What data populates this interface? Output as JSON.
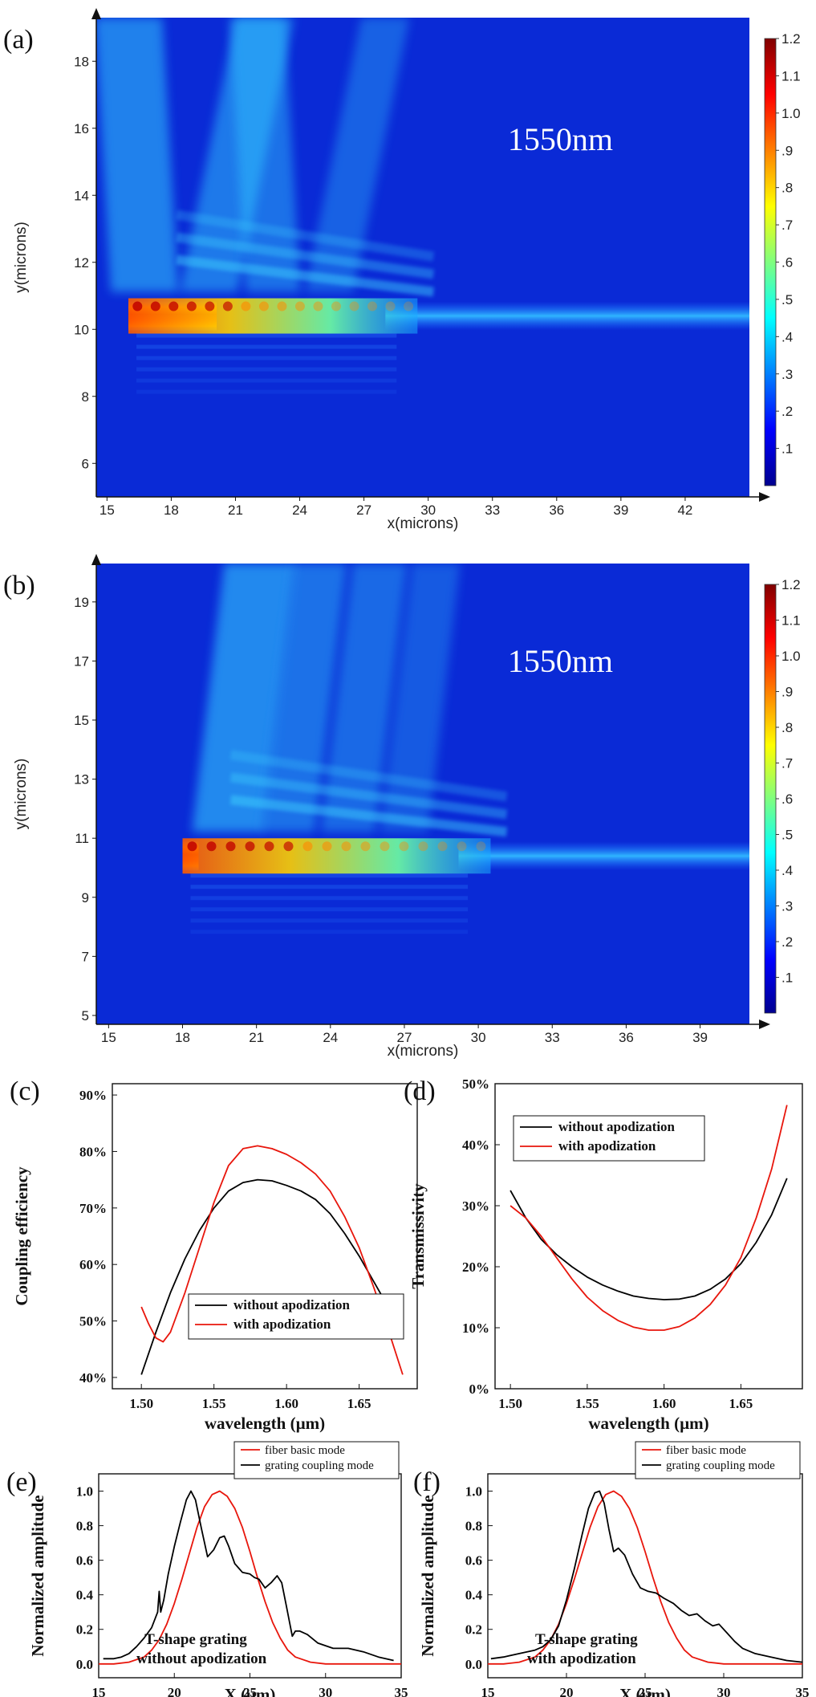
{
  "chart_data": [
    {
      "id": "a",
      "panel_label": "(a)",
      "type": "heatmap",
      "xlabel": "x(microns)",
      "ylabel": "y(microns)",
      "xlim": [
        14.5,
        45
      ],
      "ylim": [
        5,
        19.3
      ],
      "xticks": [
        15,
        18,
        21,
        24,
        27,
        30,
        33,
        36,
        39,
        42
      ],
      "yticks": [
        6,
        8,
        10,
        12,
        14,
        16,
        18
      ],
      "annotation": "1550nm",
      "colorbar_ticks": [
        0.1,
        0.2,
        0.3,
        0.4,
        0.5,
        0.6,
        0.7,
        0.8,
        0.9,
        1.0,
        1.1,
        1.2
      ],
      "waveguide": {
        "x_start": 16,
        "y_center": 10.4,
        "grating_x": [
          16,
          29.5
        ]
      }
    },
    {
      "id": "b",
      "panel_label": "(b)",
      "type": "heatmap",
      "xlabel": "x(microns)",
      "ylabel": "y(microns)",
      "xlim": [
        14.5,
        41
      ],
      "ylim": [
        4.7,
        20.3
      ],
      "xticks": [
        15,
        18,
        21,
        24,
        27,
        30,
        33,
        36,
        39
      ],
      "yticks": [
        5,
        7,
        9,
        11,
        13,
        15,
        17,
        19
      ],
      "annotation": "1550nm",
      "colorbar_ticks": [
        0.1,
        0.2,
        0.3,
        0.4,
        0.5,
        0.6,
        0.7,
        0.8,
        0.9,
        1.0,
        1.1,
        1.2
      ],
      "waveguide": {
        "x_start": 18,
        "y_center": 10.4,
        "grating_x": [
          18,
          30.5
        ]
      }
    },
    {
      "id": "c",
      "panel_label": "(c)",
      "type": "line",
      "xlabel": "wavelength (µm)",
      "ylabel": "Coupling efficiency",
      "xlim": [
        1.48,
        1.69
      ],
      "ylim": [
        38,
        92
      ],
      "xticks": [
        1.5,
        1.55,
        1.6,
        1.65
      ],
      "xtick_labels": [
        "1.50",
        "1.55",
        "1.60",
        "1.65"
      ],
      "yticks": [
        40,
        50,
        60,
        70,
        80,
        90
      ],
      "ytick_labels": [
        "40%",
        "50%",
        "60%",
        "70%",
        "80%",
        "90%"
      ],
      "legend_position": "lower-center",
      "series": [
        {
          "name": "without apodization",
          "color": "#000000",
          "x": [
            1.5,
            1.51,
            1.52,
            1.53,
            1.54,
            1.55,
            1.56,
            1.57,
            1.58,
            1.59,
            1.6,
            1.61,
            1.62,
            1.63,
            1.64,
            1.65,
            1.66,
            1.67,
            1.68
          ],
          "y": [
            40.5,
            48.0,
            55.0,
            61.0,
            66.0,
            70.0,
            73.0,
            74.5,
            75.0,
            74.8,
            74.0,
            73.0,
            71.5,
            69.0,
            65.5,
            61.5,
            57.0,
            52.5,
            47.5
          ]
        },
        {
          "name": "with apodization",
          "color": "#e8160c",
          "x": [
            1.5,
            1.505,
            1.51,
            1.515,
            1.52,
            1.53,
            1.54,
            1.55,
            1.56,
            1.57,
            1.58,
            1.59,
            1.6,
            1.61,
            1.62,
            1.63,
            1.64,
            1.65,
            1.66,
            1.67,
            1.68
          ],
          "y": [
            52.5,
            49.5,
            47.0,
            46.3,
            48.0,
            55.0,
            63.0,
            71.0,
            77.5,
            80.5,
            81.0,
            80.5,
            79.5,
            78.0,
            76.0,
            73.0,
            68.5,
            63.0,
            56.0,
            48.5,
            40.5
          ]
        }
      ]
    },
    {
      "id": "d",
      "panel_label": "(d)",
      "type": "line",
      "xlabel": "wavelength (µm)",
      "ylabel": "Transmissivity",
      "xlim": [
        1.49,
        1.69
      ],
      "ylim": [
        0,
        50
      ],
      "xticks": [
        1.5,
        1.55,
        1.6,
        1.65
      ],
      "xtick_labels": [
        "1.50",
        "1.55",
        "1.60",
        "1.65"
      ],
      "yticks": [
        0,
        10,
        20,
        30,
        40,
        50
      ],
      "ytick_labels": [
        "0%",
        "10%",
        "20%",
        "30%",
        "40%",
        "50%"
      ],
      "legend_position": "top-left",
      "series": [
        {
          "name": "without apodization",
          "color": "#000000",
          "x": [
            1.5,
            1.51,
            1.52,
            1.53,
            1.54,
            1.55,
            1.56,
            1.57,
            1.58,
            1.59,
            1.6,
            1.61,
            1.62,
            1.63,
            1.64,
            1.65,
            1.66,
            1.67,
            1.68
          ],
          "y": [
            32.5,
            28.0,
            24.5,
            22.0,
            20.0,
            18.3,
            17.0,
            16.0,
            15.2,
            14.8,
            14.6,
            14.7,
            15.2,
            16.3,
            18.0,
            20.5,
            24.0,
            28.5,
            34.5
          ]
        },
        {
          "name": "with apodization",
          "color": "#e8160c",
          "x": [
            1.5,
            1.51,
            1.52,
            1.53,
            1.54,
            1.55,
            1.56,
            1.57,
            1.58,
            1.59,
            1.6,
            1.61,
            1.62,
            1.63,
            1.64,
            1.65,
            1.66,
            1.67,
            1.68
          ],
          "y": [
            30.0,
            28.0,
            25.0,
            21.5,
            18.0,
            15.0,
            12.8,
            11.2,
            10.1,
            9.6,
            9.6,
            10.2,
            11.6,
            13.8,
            17.0,
            21.5,
            28.0,
            36.0,
            46.5
          ]
        }
      ]
    },
    {
      "id": "e",
      "panel_label": "(e)",
      "type": "line",
      "xlabel": "X (μm)",
      "ylabel": "Normalized amplitude",
      "xlim": [
        15,
        35
      ],
      "ylim": [
        -0.08,
        1.1
      ],
      "xticks": [
        15,
        20,
        25,
        30,
        35
      ],
      "yticks": [
        0.0,
        0.2,
        0.4,
        0.6,
        0.8,
        1.0
      ],
      "ytick_labels": [
        "0.0",
        "0.2",
        "0.4",
        "0.6",
        "0.8",
        "1.0"
      ],
      "legend_position": "top-right",
      "note_lines": [
        "T-shape grating",
        "without apodization"
      ],
      "series": [
        {
          "name": "fiber basic mode",
          "color": "#e8160c",
          "x": [
            15,
            16,
            17,
            18,
            18.5,
            19,
            19.5,
            20,
            20.5,
            21,
            21.5,
            22,
            22.5,
            23,
            23.5,
            24,
            24.5,
            25,
            25.5,
            26,
            26.5,
            27,
            27.5,
            28,
            29,
            30,
            31,
            32,
            33,
            34,
            35
          ],
          "y": [
            0.0,
            0.0,
            0.01,
            0.04,
            0.08,
            0.14,
            0.23,
            0.35,
            0.49,
            0.64,
            0.79,
            0.91,
            0.98,
            1.0,
            0.97,
            0.9,
            0.79,
            0.65,
            0.5,
            0.36,
            0.24,
            0.15,
            0.08,
            0.04,
            0.01,
            0.0,
            0.0,
            0.0,
            0.0,
            0.0,
            0.0
          ]
        },
        {
          "name": "grating coupling mode",
          "color": "#000000",
          "x": [
            15.3,
            16,
            16.5,
            17,
            17.5,
            18,
            18.5,
            18.9,
            19.0,
            19.1,
            19.3,
            19.6,
            20,
            20.4,
            20.8,
            21.1,
            21.4,
            21.8,
            22.2,
            22.6,
            23.0,
            23.3,
            23.6,
            24.0,
            24.5,
            25.0,
            25.3,
            25.6,
            26.0,
            26.4,
            26.8,
            27.1,
            27.4,
            27.6,
            27.8,
            28.0,
            28.3,
            28.8,
            29.5,
            30.5,
            31.5,
            32.5,
            33.5,
            34.5
          ],
          "y": [
            0.03,
            0.03,
            0.04,
            0.06,
            0.1,
            0.15,
            0.21,
            0.3,
            0.42,
            0.3,
            0.37,
            0.52,
            0.68,
            0.82,
            0.95,
            1.0,
            0.95,
            0.78,
            0.62,
            0.66,
            0.73,
            0.74,
            0.68,
            0.58,
            0.53,
            0.52,
            0.5,
            0.49,
            0.44,
            0.47,
            0.51,
            0.47,
            0.34,
            0.25,
            0.16,
            0.19,
            0.19,
            0.17,
            0.12,
            0.09,
            0.09,
            0.07,
            0.04,
            0.02
          ]
        }
      ]
    },
    {
      "id": "f",
      "panel_label": "(f)",
      "type": "line",
      "xlabel": "X (μm)",
      "ylabel": "Normalized amplitude",
      "xlim": [
        15,
        35
      ],
      "ylim": [
        -0.08,
        1.1
      ],
      "xticks": [
        15,
        20,
        25,
        30,
        35
      ],
      "yticks": [
        0.0,
        0.2,
        0.4,
        0.6,
        0.8,
        1.0
      ],
      "ytick_labels": [
        "0.0",
        "0.2",
        "0.4",
        "0.6",
        "0.8",
        "1.0"
      ],
      "legend_position": "top-right",
      "note_lines": [
        "T-shape grating",
        "with apodization"
      ],
      "series": [
        {
          "name": "fiber basic mode",
          "color": "#e8160c",
          "x": [
            15,
            16,
            17,
            18,
            18.5,
            19,
            19.5,
            20,
            20.5,
            21,
            21.5,
            22,
            22.5,
            23,
            23.5,
            24,
            24.5,
            25,
            25.5,
            26,
            26.5,
            27,
            27.5,
            28,
            29,
            30,
            31,
            32,
            33,
            34,
            35
          ],
          "y": [
            0.0,
            0.0,
            0.01,
            0.04,
            0.08,
            0.14,
            0.23,
            0.35,
            0.49,
            0.64,
            0.79,
            0.91,
            0.98,
            1.0,
            0.97,
            0.9,
            0.79,
            0.65,
            0.5,
            0.36,
            0.24,
            0.15,
            0.08,
            0.04,
            0.01,
            0.0,
            0.0,
            0.0,
            0.0,
            0.0,
            0.0
          ]
        },
        {
          "name": "grating coupling mode",
          "color": "#000000",
          "x": [
            15.2,
            16,
            17,
            18,
            18.5,
            19,
            19.5,
            20,
            20.5,
            21,
            21.4,
            21.8,
            22.1,
            22.4,
            22.7,
            23.0,
            23.3,
            23.7,
            24.2,
            24.7,
            25.2,
            25.7,
            26.2,
            26.8,
            27.3,
            27.8,
            28.3,
            28.8,
            29.3,
            29.7,
            30.2,
            30.7,
            31.2,
            32,
            33,
            34,
            35
          ],
          "y": [
            0.03,
            0.04,
            0.06,
            0.08,
            0.1,
            0.14,
            0.22,
            0.37,
            0.55,
            0.75,
            0.9,
            0.99,
            1.0,
            0.93,
            0.78,
            0.65,
            0.67,
            0.63,
            0.52,
            0.44,
            0.42,
            0.41,
            0.38,
            0.35,
            0.31,
            0.28,
            0.29,
            0.25,
            0.22,
            0.23,
            0.18,
            0.13,
            0.09,
            0.06,
            0.04,
            0.02,
            0.01
          ]
        }
      ]
    }
  ]
}
